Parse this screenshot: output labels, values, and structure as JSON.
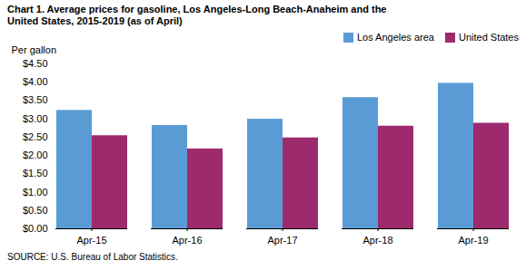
{
  "chart_data": {
    "type": "bar",
    "title": "Chart 1. Average prices for gasoline, Los Angeles-Long Beach-Anaheim and the",
    "subtitle": "United States, 2015-2019  (as of April)",
    "ylabel": "Per gallon",
    "source": "SOURCE: U.S. Bureau of Labor Statistics.",
    "categories": [
      "Apr-15",
      "Apr-16",
      "Apr-17",
      "Apr-18",
      "Apr-19"
    ],
    "series": [
      {
        "name": "Los Angeles area",
        "color": "#5B9BD5",
        "values": [
          3.23,
          2.82,
          2.99,
          3.58,
          3.97
        ]
      },
      {
        "name": "United States",
        "color": "#9E2A6E",
        "values": [
          2.54,
          2.18,
          2.48,
          2.8,
          2.88
        ]
      }
    ],
    "ylim": [
      0,
      4.5
    ],
    "yticks": [
      {
        "value": 0,
        "label": "$0.00"
      },
      {
        "value": 0.5,
        "label": "$0.50"
      },
      {
        "value": 1,
        "label": "$1.00"
      },
      {
        "value": 1.5,
        "label": "$1.50"
      },
      {
        "value": 2,
        "label": "$2.00"
      },
      {
        "value": 2.5,
        "label": "$2.50"
      },
      {
        "value": 3,
        "label": "$3.00"
      },
      {
        "value": 3.5,
        "label": "$3.50"
      },
      {
        "value": 4,
        "label": "$4.00"
      },
      {
        "value": 4.5,
        "label": "$4.50"
      }
    ],
    "grid": false,
    "legend": "upper right"
  }
}
